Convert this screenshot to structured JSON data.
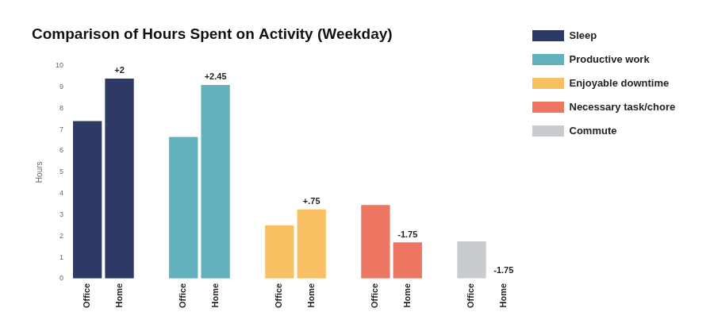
{
  "chart_data": {
    "type": "bar",
    "title": "Comparison of Hours Spent on Activity (Weekday)",
    "y_label": "Hours",
    "categories": [
      "Office",
      "Home"
    ],
    "series": [
      {
        "name": "Sleep",
        "color": "#2e3a66",
        "values": [
          7.4,
          9.4
        ]
      },
      {
        "name": "Productive work",
        "color": "#62b1bf",
        "values": [
          6.65,
          9.1
        ]
      },
      {
        "name": "Enjoyable downtime",
        "color": "#f9bf63",
        "values": [
          2.5,
          3.25
        ]
      },
      {
        "name": "Necessary task/chore",
        "color": "#ec7661",
        "values": [
          3.45,
          1.7
        ]
      },
      {
        "name": "Commute",
        "color": "#c8ccd1",
        "values": [
          1.75,
          0
        ]
      }
    ],
    "annotations": [
      {
        "series": "Sleep",
        "category": "Home",
        "text": "+2"
      },
      {
        "series": "Productive work",
        "category": "Home",
        "text": "+2.45"
      },
      {
        "series": "Enjoyable downtime",
        "category": "Home",
        "text": "+.75"
      },
      {
        "series": "Necessary task/chore",
        "category": "Home",
        "text": "-1.75"
      },
      {
        "series": "Commute",
        "category": "Home",
        "text": "-1.75"
      }
    ],
    "ylim": [
      0,
      10
    ],
    "yticks": [
      0,
      1,
      2,
      3,
      4,
      5,
      6,
      7,
      8,
      9,
      10
    ],
    "grid": false,
    "legend": "right"
  }
}
